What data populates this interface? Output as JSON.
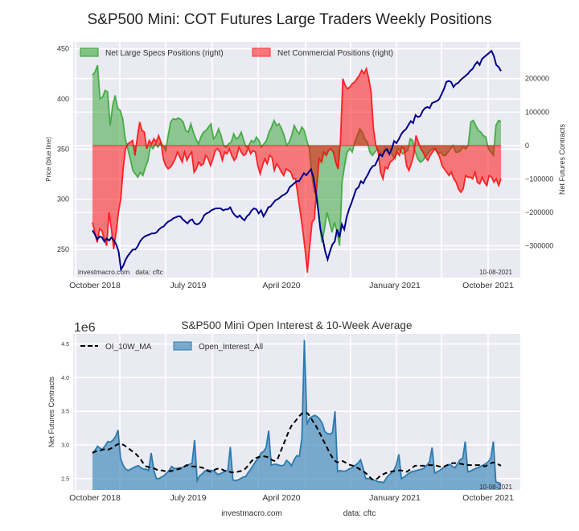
{
  "page": {
    "title": "S&P500 Mini: COT Futures Large Traders Weekly Positions",
    "footer_site": "investmacro.com",
    "footer_data": "data: cftc"
  },
  "chart_data": [
    {
      "type": "area",
      "title": "S&P500 Mini: COT Futures Large Traders Weekly Positions",
      "xlabel": "",
      "ylabel": "Price (blue line)",
      "ylabel_right": "Net Futures Contracts",
      "ylim": [
        222,
        457
      ],
      "ylim_right": [
        -395000,
        310000
      ],
      "yticks": [
        "250",
        "300",
        "350",
        "400",
        "450"
      ],
      "yticks_right": [
        "-300000",
        "-200000",
        "-100000",
        "0",
        "100000",
        "200000"
      ],
      "xticks": [
        "October 2018",
        "July 2019",
        "April 2020",
        "January 2021",
        "October 2021"
      ],
      "grid": true,
      "legend_position": "top-left",
      "annotation_left": "investmacro.com   data: cftc",
      "annotation_right": "10-08-2021",
      "x_start": "2018-09-04",
      "x_end": "2021-10-05",
      "series": [
        {
          "name": "Net Large Specs Positions (right)",
          "kind": "fill",
          "color": "#2ca02c",
          "values": [
            210000,
            220000,
            240000,
            140000,
            145000,
            165000,
            160000,
            60000,
            120000,
            150000,
            110000,
            105000,
            80000,
            20000,
            -10000,
            -40000,
            -75000,
            -85000,
            -95000,
            -80000,
            -90000,
            -65000,
            -45000,
            0,
            -10000,
            5000,
            -5000,
            10000,
            0,
            -15000,
            30000,
            70000,
            80000,
            78000,
            82000,
            78000,
            70000,
            45000,
            40000,
            65000,
            40000,
            20000,
            5000,
            25000,
            40000,
            45000,
            55000,
            65000,
            20000,
            30000,
            50000,
            30000,
            0,
            -5000,
            5000,
            10000,
            35000,
            20000,
            25000,
            40000,
            15000,
            -5000,
            0,
            15000,
            10000,
            25000,
            15000,
            -5000,
            5000,
            15000,
            40000,
            55000,
            75000,
            60000,
            65000,
            50000,
            30000,
            0,
            10000,
            30000,
            60000,
            45000,
            35000,
            55000,
            45000,
            15000,
            -10000,
            -90000,
            -140000,
            -150000,
            -230000,
            -290000,
            -250000,
            -200000,
            -230000,
            -260000,
            -230000,
            -260000,
            -300000,
            -110000,
            -60000,
            -20000,
            -10000,
            -20000,
            10000,
            30000,
            50000,
            40000,
            20000,
            10000,
            -20000,
            -30000,
            -20000,
            -10000,
            -20000,
            -30000,
            -5000,
            -20000,
            -10000,
            -30000,
            -40000,
            -10000,
            -15000,
            -25000,
            -20000,
            -15000,
            20000,
            15000,
            -20000,
            -40000,
            -50000,
            -45000,
            -35000,
            -25000,
            -15000,
            -10000,
            -10000,
            -25000,
            -20000,
            -30000,
            -30000,
            -20000,
            -10000,
            0,
            -20000,
            -20000,
            -15000,
            -5000,
            -10000,
            0,
            70000,
            75000,
            60000,
            45000,
            40000,
            30000,
            25000,
            -10000,
            -20000,
            -30000,
            60000,
            75000,
            72000
          ]
        },
        {
          "name": "Net Commercial Positions (right)",
          "kind": "fill",
          "color": "#ff0000",
          "values": [
            -230000,
            -260000,
            -290000,
            -250000,
            -255000,
            -280000,
            -300000,
            -200000,
            -250000,
            -310000,
            -260000,
            -200000,
            -160000,
            -70000,
            -10000,
            5000,
            10000,
            15000,
            -30000,
            25000,
            70000,
            45000,
            40000,
            -10000,
            15000,
            5000,
            20000,
            10000,
            30000,
            10000,
            -40000,
            -60000,
            -70000,
            -65000,
            -55000,
            -40000,
            -20000,
            -35000,
            -50000,
            -20000,
            -45000,
            -30000,
            -20000,
            -80000,
            -70000,
            -50000,
            -60000,
            -55000,
            -30000,
            -40000,
            -60000,
            -40000,
            -15000,
            -10000,
            -20000,
            -45000,
            -20000,
            -25000,
            -10000,
            -30000,
            -45000,
            -35000,
            -5000,
            -20000,
            -30000,
            -25000,
            -5000,
            -25000,
            -15000,
            -20000,
            -60000,
            -85000,
            -60000,
            -40000,
            -55000,
            -30000,
            -35000,
            -75000,
            -55000,
            -65000,
            -80000,
            -90000,
            -70000,
            -75000,
            -80000,
            -100000,
            -100000,
            -150000,
            -200000,
            -250000,
            -310000,
            -380000,
            -300000,
            -230000,
            -220000,
            -120000,
            -40000,
            -50000,
            -20000,
            -30000,
            -15000,
            -10000,
            -20000,
            -50000,
            -70000,
            10000,
            200000,
            180000,
            170000,
            175000,
            185000,
            190000,
            200000,
            210000,
            225000,
            215000,
            230000,
            200000,
            160000,
            50000,
            0,
            -20000,
            -80000,
            -100000,
            -65000,
            -70000,
            -50000,
            -45000,
            -35000,
            -20000,
            -30000,
            -5000,
            -10000,
            -60000,
            -75000,
            -55000,
            -30000,
            30000,
            10000,
            -10000,
            -20000,
            -35000,
            -45000,
            -30000,
            -20000,
            -10000,
            -20000,
            -35000,
            -60000,
            -70000,
            -80000,
            -90000,
            -80000,
            -100000,
            -110000,
            -130000,
            -140000,
            -130000,
            -90000,
            -95000,
            -95000,
            -100000,
            -80000,
            -110000,
            -115000,
            -95000,
            -110000,
            -120000,
            -90000,
            -95000,
            -110000,
            -100000,
            -120000,
            -100000
          ]
        },
        {
          "name": "Price (blue line)",
          "kind": "line",
          "axis": "left",
          "color": "#00008b",
          "values": [
            269,
            265,
            260,
            263,
            262,
            258,
            261,
            259,
            262,
            259,
            255,
            248,
            230,
            234,
            240,
            244,
            247,
            250,
            250,
            253,
            258,
            261,
            263,
            264,
            265,
            266,
            266,
            267,
            270,
            272,
            273,
            276,
            278,
            279,
            281,
            282,
            283,
            283,
            280,
            278,
            276,
            279,
            280,
            276,
            275,
            276,
            279,
            284,
            286,
            287,
            289,
            290,
            291,
            291,
            291,
            289,
            290,
            290,
            292,
            287,
            284,
            282,
            284,
            281,
            279,
            283,
            285,
            289,
            291,
            290,
            286,
            289,
            283,
            287,
            292,
            293,
            296,
            299,
            300,
            302,
            304,
            305,
            307,
            312,
            314,
            316,
            318,
            318,
            322,
            326,
            324,
            327,
            330,
            322,
            308,
            290,
            270,
            260,
            248,
            240,
            248,
            255,
            258,
            270,
            262,
            275,
            270,
            282,
            290,
            296,
            303,
            310,
            312,
            318,
            316,
            321,
            325,
            330,
            333,
            334,
            339,
            345,
            343,
            348,
            350,
            345,
            350,
            358,
            356,
            360,
            365,
            368,
            370,
            374,
            378,
            376,
            384,
            382,
            383,
            388,
            391,
            392,
            391,
            396,
            397,
            398,
            400,
            405,
            410,
            417,
            418,
            417,
            412,
            415,
            416,
            419,
            421,
            423,
            425,
            428,
            430,
            434,
            437,
            434,
            440,
            442,
            444,
            446,
            448,
            443,
            434,
            432,
            428
          ]
        }
      ]
    },
    {
      "type": "area",
      "title": "S&P500 Mini Open Interest & 10-Week Average",
      "xlabel": "",
      "ylabel": "Net Futures Contracts",
      "y_scale_label": "1e6",
      "ylim": [
        2.33,
        4.65
      ],
      "yticks": [
        "2.5",
        "3.0",
        "3.5",
        "4.0",
        "4.5"
      ],
      "xticks": [
        "October 2018",
        "July 2019",
        "April 2020",
        "January 2021",
        "October 2021"
      ],
      "grid": true,
      "legend_position": "top-left",
      "annotation_right": "10-08-2021",
      "x_start": "2018-09-04",
      "x_end": "2021-10-05",
      "series": [
        {
          "name": "OI_10W_MA",
          "kind": "dashed-line",
          "color": "#000000",
          "values": [
            2.88,
            2.9,
            2.91,
            2.92,
            2.93,
            2.94,
            2.93,
            2.95,
            2.98,
            3.0,
            3.02,
            3.01,
            2.99,
            2.96,
            2.93,
            2.9,
            2.87,
            2.83,
            2.78,
            2.72,
            2.68,
            2.67,
            2.66,
            2.65,
            2.63,
            2.62,
            2.62,
            2.61,
            2.61,
            2.61,
            2.62,
            2.63,
            2.64,
            2.65,
            2.67,
            2.7,
            2.69,
            2.68,
            2.68,
            2.67,
            2.67,
            2.66,
            2.64,
            2.61,
            2.6,
            2.62,
            2.64,
            2.65,
            2.64,
            2.62,
            2.61,
            2.6,
            2.59,
            2.6,
            2.6,
            2.61,
            2.62,
            2.65,
            2.7,
            2.75,
            2.79,
            2.81,
            2.82,
            2.83,
            2.83,
            2.82,
            2.8,
            2.77,
            2.76,
            2.8,
            2.9,
            3.0,
            3.1,
            3.2,
            3.28,
            3.33,
            3.38,
            3.43,
            3.47,
            3.48,
            3.47,
            3.42,
            3.35,
            3.29,
            3.22,
            3.14,
            3.06,
            2.98,
            2.9,
            2.83,
            2.77,
            2.74,
            2.75,
            2.76,
            2.74,
            2.72,
            2.7,
            2.69,
            2.67,
            2.65,
            2.62,
            2.6,
            2.57,
            2.53,
            2.49,
            2.48,
            2.5,
            2.54,
            2.56,
            2.58,
            2.59,
            2.6,
            2.61,
            2.62,
            2.62,
            2.62,
            2.61,
            2.6,
            2.63,
            2.66,
            2.69,
            2.69,
            2.69,
            2.69,
            2.69,
            2.7,
            2.7,
            2.7,
            2.69,
            2.68,
            2.67,
            2.68,
            2.7,
            2.71,
            2.73,
            2.73,
            2.72,
            2.72,
            2.71,
            2.71,
            2.7,
            2.7,
            2.7,
            2.7,
            2.7,
            2.69,
            2.68,
            2.7,
            2.72,
            2.74,
            2.73,
            2.71,
            2.69
          ]
        },
        {
          "name": "Open_Interest_All",
          "kind": "fill",
          "color": "#2b7bb0",
          "values": [
            2.88,
            2.92,
            2.98,
            2.95,
            2.94,
            2.99,
            3.05,
            3.04,
            3.07,
            3.12,
            3.22,
            2.8,
            2.7,
            2.64,
            2.62,
            2.64,
            2.66,
            2.68,
            2.69,
            2.66,
            2.64,
            2.64,
            2.62,
            2.88,
            2.63,
            2.5,
            2.5,
            2.52,
            2.54,
            2.58,
            2.62,
            2.68,
            2.65,
            2.65,
            2.66,
            2.66,
            2.68,
            2.7,
            2.71,
            2.73,
            3.07,
            2.47,
            2.54,
            2.57,
            2.61,
            2.63,
            2.62,
            2.62,
            2.6,
            2.56,
            2.57,
            2.59,
            2.61,
            2.62,
            2.97,
            2.48,
            2.47,
            2.48,
            2.5,
            2.52,
            2.53,
            2.59,
            2.64,
            2.7,
            2.76,
            2.8,
            2.88,
            2.9,
            2.96,
            3.21,
            2.7,
            2.71,
            2.71,
            2.7,
            2.69,
            2.7,
            2.77,
            2.74,
            2.69,
            2.78,
            2.84,
            2.83,
            3.1,
            4.56,
            3.3,
            3.4,
            3.42,
            3.44,
            3.42,
            3.38,
            3.32,
            3.2,
            3.17,
            3.16,
            3.18,
            3.5,
            2.6,
            2.62,
            2.61,
            2.61,
            2.63,
            2.65,
            2.67,
            2.7,
            2.73,
            2.78,
            2.65,
            2.5,
            2.5,
            2.49,
            2.48,
            2.47,
            2.45,
            2.45,
            2.44,
            2.5,
            2.55,
            2.58,
            2.62,
            2.7,
            2.86,
            2.5,
            2.52,
            2.55,
            2.58,
            2.6,
            2.61,
            2.62,
            2.63,
            2.64,
            2.66,
            2.7,
            2.75,
            2.96,
            2.58,
            2.6,
            2.62,
            2.65,
            2.68,
            2.7,
            2.71,
            2.68,
            2.66,
            2.72,
            2.78,
            2.8,
            3.05,
            2.6,
            2.61,
            2.63,
            2.65,
            2.66,
            2.68,
            2.7,
            2.72,
            2.75,
            2.8,
            3.05,
            2.45,
            2.44,
            2.42
          ]
        }
      ]
    }
  ]
}
